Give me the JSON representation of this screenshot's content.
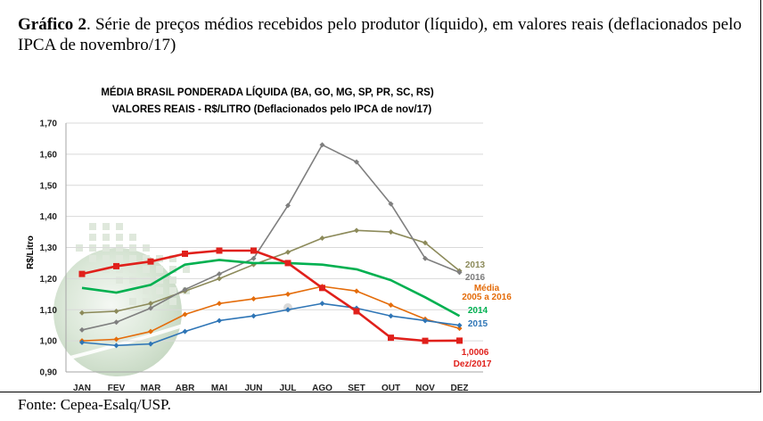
{
  "caption": {
    "label": "Gráfico 2",
    "text": ". Série de preços médios recebidos pelo produtor (líquido), em valores reais (deflacionados pelo IPCA de novembro/17)"
  },
  "source": "Fonte: Cepea-Esalq/USP.",
  "chart_data": {
    "type": "line",
    "title": "MÉDIA BRASIL PONDERADA LÍQUIDA (BA, GO, MG, SP, PR, SC, RS)",
    "subtitle": "VALORES REAIS - R$/LITRO (Deflacionados pelo IPCA de nov/17)",
    "ylabel": "R$/Litro",
    "xlabel": "",
    "ylim": [
      0.9,
      1.7
    ],
    "grid": "horizontal",
    "categories": [
      "JAN",
      "FEV",
      "MAR",
      "ABR",
      "MAI",
      "JUN",
      "JUL",
      "AGO",
      "SET",
      "OUT",
      "NOV",
      "DEZ"
    ],
    "y_ticks": [
      "0,90",
      "1,00",
      "1,10",
      "1,20",
      "1,30",
      "1,40",
      "1,50",
      "1,60",
      "1,70"
    ],
    "series": [
      {
        "name": "2013",
        "color": "#8c8a5a",
        "marker": "diamond",
        "values": [
          1.09,
          1.095,
          1.12,
          1.16,
          1.2,
          1.245,
          1.285,
          1.33,
          1.355,
          1.35,
          1.315,
          1.225
        ]
      },
      {
        "name": "2016",
        "color": "#7f7f7f",
        "marker": "diamond",
        "values": [
          1.035,
          1.06,
          1.105,
          1.165,
          1.215,
          1.265,
          1.435,
          1.63,
          1.575,
          1.44,
          1.265,
          1.22
        ]
      },
      {
        "name": "Média 2005 a 2016",
        "color": "#e46c0a",
        "marker": "diamond",
        "values": [
          1.0,
          1.005,
          1.03,
          1.085,
          1.12,
          1.135,
          1.15,
          1.175,
          1.16,
          1.115,
          1.07,
          1.04
        ]
      },
      {
        "name": "2014",
        "color": "#00b050",
        "marker": "none",
        "values": [
          1.17,
          1.155,
          1.18,
          1.245,
          1.26,
          1.25,
          1.25,
          1.245,
          1.23,
          1.195,
          1.14,
          1.08
        ]
      },
      {
        "name": "2015",
        "color": "#2e75b6",
        "marker": "diamond",
        "values": [
          0.995,
          0.985,
          0.99,
          1.03,
          1.065,
          1.08,
          1.1,
          1.12,
          1.105,
          1.08,
          1.065,
          1.05
        ]
      },
      {
        "name": "2017",
        "color": "#e0201b",
        "marker": "square",
        "values": [
          1.215,
          1.24,
          1.255,
          1.28,
          1.29,
          1.29,
          1.25,
          1.17,
          1.095,
          1.01,
          1.0,
          1.0006
        ]
      }
    ],
    "annotation": {
      "value": "1,0006",
      "label": "Dez/2017"
    }
  }
}
